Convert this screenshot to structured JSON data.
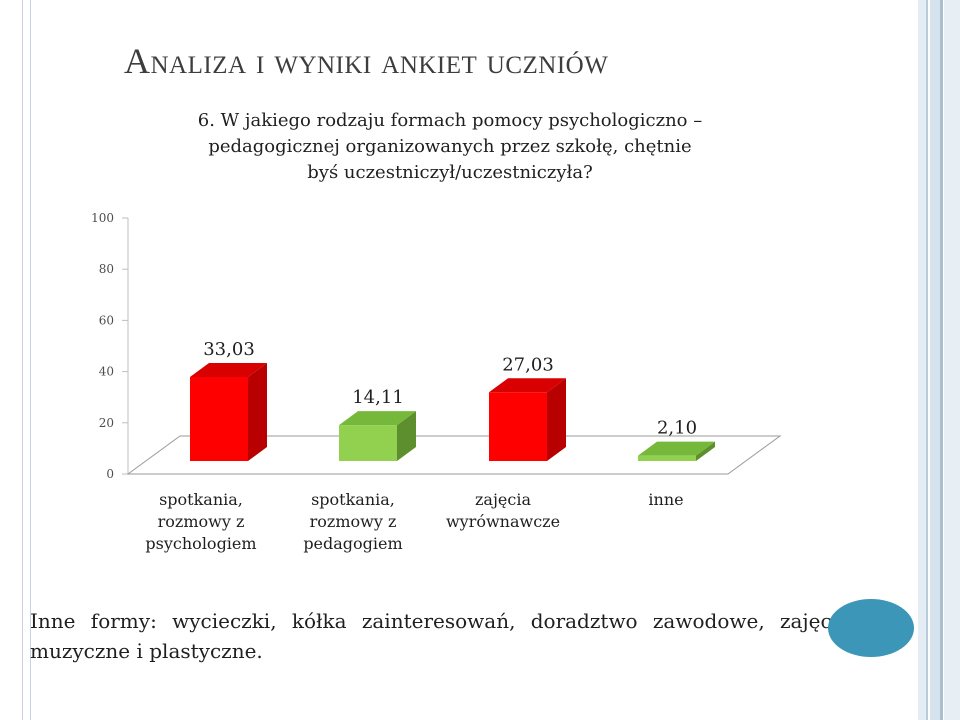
{
  "slide": {
    "title": "Analiza i wyniki ankiet uczniów",
    "question_lines": [
      "6. W jakiego rodzaju formach pomocy psychologiczno –",
      "pedagogicznej organizowanych przez szkołę, chętnie",
      "byś uczestniczył/uczestniczyła?"
    ],
    "footnote": "Inne formy: wycieczki, kółka zainteresowań, doradztwo zawodowe, zajęcia muzyczne i plastyczne."
  },
  "colors": {
    "title": "#3d3d3d",
    "accent_circle": "#3b96b8",
    "red_front": "#ff0000",
    "red_side": "#b80000",
    "red_top": "#d80000",
    "green_front": "#92d050",
    "green_side": "#5e8f2e",
    "green_top": "#75b83a"
  },
  "chart_data": {
    "type": "bar",
    "three_d": true,
    "categories": [
      [
        "spotkania,",
        "rozmowy z",
        "psychologiem"
      ],
      [
        "spotkania,",
        "rozmowy z",
        "pedagogiem"
      ],
      [
        "zajęcia",
        "wyrównawcze"
      ],
      [
        "inne"
      ]
    ],
    "values": [
      33.03,
      14.11,
      27.03,
      2.1
    ],
    "data_labels": [
      "33,03",
      "14,11",
      "27,03",
      "2,10"
    ],
    "bar_colors": [
      "red",
      "green",
      "red",
      "green"
    ],
    "yticks": [
      "0",
      "20",
      "40",
      "60",
      "80",
      "100"
    ],
    "ylim": [
      0,
      100
    ],
    "grid": false,
    "legend": "none"
  }
}
